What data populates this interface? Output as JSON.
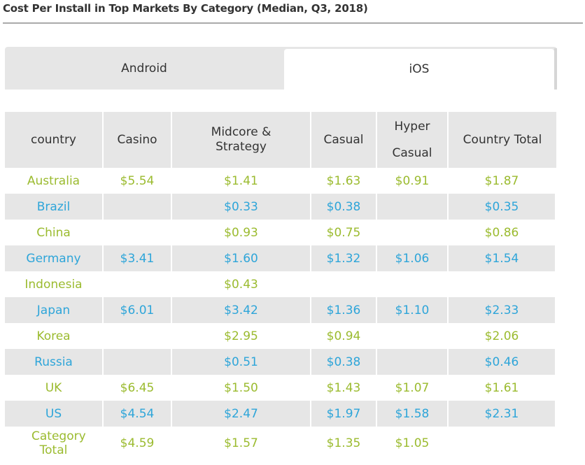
{
  "title": "Cost Per Install in Top Markets By Category (Median, Q3, 2018)",
  "tabs": [
    {
      "label": "Android",
      "active": false
    },
    {
      "label": "iOS",
      "active": true
    }
  ],
  "colors": {
    "odd_row_text": "#9bbb2f",
    "even_row_text": "#2ea5d9",
    "stripe": "#e6e6e6"
  },
  "chart_data": {
    "type": "table",
    "title": "Cost Per Install in Top Markets By Category (Median, Q3, 2018)",
    "columns": [
      "country",
      "Casino",
      "Midcore & Strategy",
      "Casual",
      "Hyper Casual",
      "Country Total"
    ],
    "header_lines": [
      [
        "country"
      ],
      [
        "Casino"
      ],
      [
        "Midcore &",
        "Strategy"
      ],
      [
        "Casual"
      ],
      [
        "Hyper",
        "Casual"
      ],
      [
        "Country Total"
      ]
    ],
    "rows": [
      [
        "Australia",
        "$5.54",
        "$1.41",
        "$1.63",
        "$0.91",
        "$1.87"
      ],
      [
        "Brazil",
        "",
        "$0.33",
        "$0.38",
        "",
        "$0.35"
      ],
      [
        "China",
        "",
        "$0.93",
        "$0.75",
        "",
        "$0.86"
      ],
      [
        "Germany",
        "$3.41",
        "$1.60",
        "$1.32",
        "$1.06",
        "$1.54"
      ],
      [
        "Indonesia",
        "",
        "$0.43",
        "",
        "",
        ""
      ],
      [
        "Japan",
        "$6.01",
        "$3.42",
        "$1.36",
        "$1.10",
        "$2.33"
      ],
      [
        "Korea",
        "",
        "$2.95",
        "$0.94",
        "",
        "$2.06"
      ],
      [
        "Russia",
        "",
        "$0.51",
        "$0.38",
        "",
        "$0.46"
      ],
      [
        "UK",
        "$6.45",
        "$1.50",
        "$1.43",
        "$1.07",
        "$1.61"
      ],
      [
        "US",
        "$4.54",
        "$2.47",
        "$1.97",
        "$1.58",
        "$2.31"
      ],
      [
        "Category Total",
        "$4.59",
        "$1.57",
        "$1.35",
        "$1.05",
        ""
      ]
    ]
  }
}
